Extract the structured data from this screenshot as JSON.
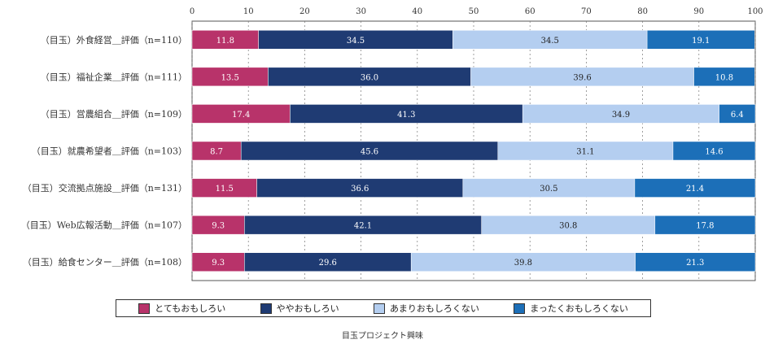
{
  "chart_data": {
    "type": "bar",
    "orientation": "horizontal",
    "stacked": true,
    "title": "目玉プロジェクト興味",
    "xlim": [
      0,
      100
    ],
    "xticks": [
      0,
      10,
      20,
      30,
      40,
      50,
      60,
      70,
      80,
      90,
      100
    ],
    "grid": true,
    "legend_position": "bottom",
    "categories": [
      "（目玉）外食経営＿評価（n=110）",
      "（目玉）福祉企業＿評価（n=111）",
      "（目玉）営農組合＿評価（n=109）",
      "（目玉）就農希望者＿評価（n=103）",
      "（目玉）交流拠点施設＿評価（n=131）",
      "（目玉）Web広報活動＿評価（n=107）",
      "（目玉）給食センター＿評価（n=108）"
    ],
    "series": [
      {
        "name": "とてもおもしろい",
        "color": "#b8336a",
        "values": [
          11.8,
          13.5,
          17.4,
          8.7,
          11.5,
          9.3,
          9.3
        ]
      },
      {
        "name": "ややおもしろい",
        "color": "#1f3b73",
        "values": [
          34.5,
          36.0,
          41.3,
          45.6,
          36.6,
          42.1,
          29.6
        ]
      },
      {
        "name": "あまりおもしろくない",
        "color": "#b4cef0",
        "values": [
          34.5,
          39.6,
          34.9,
          31.1,
          30.5,
          30.8,
          39.8
        ]
      },
      {
        "name": "まったくおもしろくない",
        "color": "#1c6fb8",
        "values": [
          19.1,
          10.8,
          6.4,
          14.6,
          21.4,
          17.8,
          21.3
        ]
      }
    ]
  }
}
